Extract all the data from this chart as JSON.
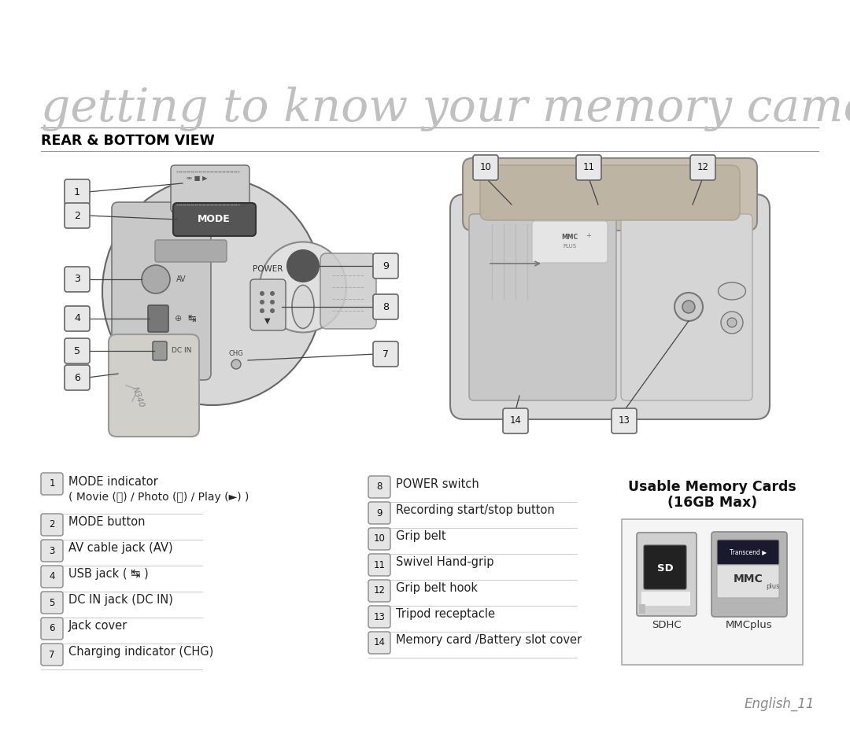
{
  "title": "getting to know your memory camcorder",
  "section_title": "REAR & BOTTOM VIEW",
  "bg_color": "#ffffff",
  "footer": "English_11",
  "left_items": [
    {
      "num": "1",
      "line1": "MODE indicator",
      "line2": "( Movie (🎥) / Photo (📷) / Play (►) )"
    },
    {
      "num": "2",
      "line1": "MODE button",
      "line2": ""
    },
    {
      "num": "3",
      "line1": "AV cable jack (AV)",
      "line2": ""
    },
    {
      "num": "4",
      "line1": "USB jack ( ↹ )",
      "line2": ""
    },
    {
      "num": "5",
      "line1": "DC IN jack (DC IN)",
      "line2": ""
    },
    {
      "num": "6",
      "line1": "Jack cover",
      "line2": ""
    },
    {
      "num": "7",
      "line1": "Charging indicator (CHG)",
      "line2": ""
    }
  ],
  "right_items": [
    {
      "num": "8",
      "line1": "POWER switch",
      "line2": ""
    },
    {
      "num": "9",
      "line1": "Recording start/stop button",
      "line2": ""
    },
    {
      "num": "10",
      "line1": "Grip belt",
      "line2": ""
    },
    {
      "num": "11",
      "line1": "Swivel Hand-grip",
      "line2": ""
    },
    {
      "num": "12",
      "line1": "Grip belt hook",
      "line2": ""
    },
    {
      "num": "13",
      "line1": "Tripod receptacle",
      "line2": ""
    },
    {
      "num": "14",
      "line1": "Memory card /Battery slot cover",
      "line2": ""
    }
  ],
  "memory_cards_title_line1": "Usable Memory Cards",
  "memory_cards_title_line2": "(16GB Max)",
  "card_labels": [
    "SDHC",
    "MMCplus"
  ]
}
